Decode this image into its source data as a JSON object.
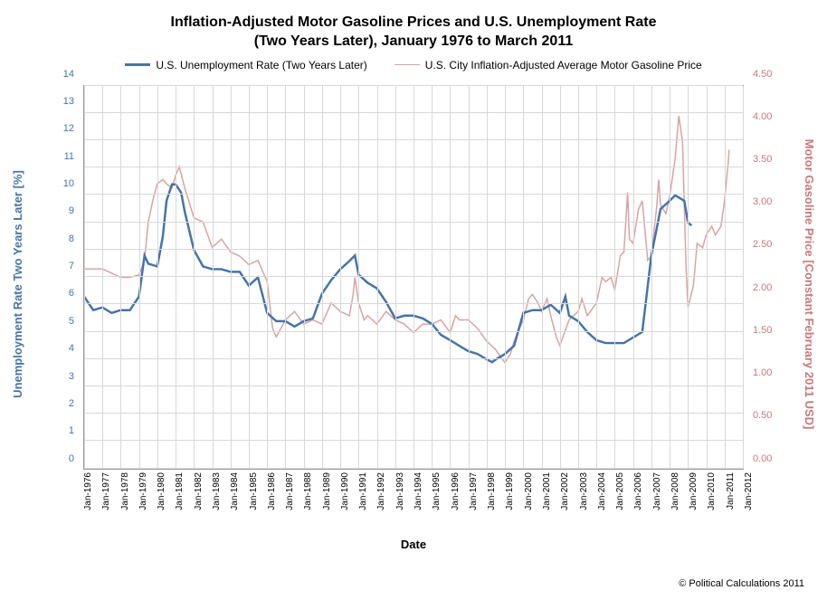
{
  "chart": {
    "type": "line",
    "title_line1": "Inflation-Adjusted Motor Gasoline Prices and U.S. Unemployment Rate",
    "title_line2": "(Two Years Later), January 1976 to March 2011",
    "title_fontsize": 16,
    "legend": {
      "position": "top",
      "items": [
        {
          "label": "U.S. Unemployment Rate (Two Years Later)",
          "color": "#4574a8",
          "width": 2.5
        },
        {
          "label": "U.S. City Inflation-Adjusted Average Motor Gasoline Price",
          "color": "#d9a3a3",
          "width": 1.5
        }
      ]
    },
    "x_axis": {
      "label": "Date",
      "label_fontsize": 13,
      "ticks": [
        "Jan-1976",
        "Jan-1977",
        "Jan-1978",
        "Jan-1979",
        "Jan-1980",
        "Jan-1981",
        "Jan-1982",
        "Jan-1983",
        "Jan-1984",
        "Jan-1985",
        "Jan-1986",
        "Jan-1987",
        "Jan-1988",
        "Jan-1989",
        "Jan-1990",
        "Jan-1991",
        "Jan-1992",
        "Jan-1993",
        "Jan-1994",
        "Jan-1995",
        "Jan-1996",
        "Jan-1997",
        "Jan-1998",
        "Jan-1999",
        "Jan-2000",
        "Jan-2001",
        "Jan-2002",
        "Jan-2003",
        "Jan-2004",
        "Jan-2005",
        "Jan-2006",
        "Jan-2007",
        "Jan-2008",
        "Jan-2009",
        "Jan-2010",
        "Jan-2011",
        "Jan-2012"
      ],
      "tick_fontsize": 10,
      "tick_rotation": -90
    },
    "y_axis_left": {
      "label": "Unemployment Rate Two Years Later [%]",
      "label_fontsize": 13,
      "color": "#4574a8",
      "min": 0,
      "max": 14,
      "tick_step": 1,
      "ticks": [
        0,
        1,
        2,
        3,
        4,
        5,
        6,
        7,
        8,
        9,
        10,
        11,
        12,
        13,
        14
      ]
    },
    "y_axis_right": {
      "label": "Motor Gasoline Price [Constant February 2011 USD]",
      "label_fontsize": 13,
      "color": "#c67a7a",
      "min": 0,
      "max": 4.5,
      "tick_step": 0.5,
      "ticks": [
        "0.00",
        "0.50",
        "1.00",
        "1.50",
        "2.00",
        "2.50",
        "3.00",
        "3.50",
        "4.00",
        "4.50"
      ]
    },
    "grid": {
      "show": true,
      "color": "#d8d8d8"
    },
    "background_color": "#ffffff",
    "series": {
      "unemployment": {
        "color": "#4574a8",
        "width": 2.5,
        "data": [
          [
            1976.0,
            6.3
          ],
          [
            1976.5,
            5.8
          ],
          [
            1977.0,
            5.9
          ],
          [
            1977.5,
            5.7
          ],
          [
            1978.0,
            5.8
          ],
          [
            1978.5,
            5.8
          ],
          [
            1979.0,
            6.3
          ],
          [
            1979.3,
            7.8
          ],
          [
            1979.5,
            7.5
          ],
          [
            1980.0,
            7.4
          ],
          [
            1980.3,
            8.5
          ],
          [
            1980.5,
            9.8
          ],
          [
            1980.8,
            10.4
          ],
          [
            1981.0,
            10.4
          ],
          [
            1981.3,
            10.1
          ],
          [
            1981.5,
            9.4
          ],
          [
            1982.0,
            8.0
          ],
          [
            1982.5,
            7.4
          ],
          [
            1983.0,
            7.3
          ],
          [
            1983.5,
            7.3
          ],
          [
            1984.0,
            7.2
          ],
          [
            1984.5,
            7.2
          ],
          [
            1985.0,
            6.7
          ],
          [
            1985.5,
            7.0
          ],
          [
            1986.0,
            5.7
          ],
          [
            1986.5,
            5.4
          ],
          [
            1987.0,
            5.4
          ],
          [
            1987.5,
            5.2
          ],
          [
            1988.0,
            5.4
          ],
          [
            1988.5,
            5.5
          ],
          [
            1989.0,
            6.4
          ],
          [
            1989.5,
            6.9
          ],
          [
            1990.0,
            7.3
          ],
          [
            1990.5,
            7.6
          ],
          [
            1990.8,
            7.8
          ],
          [
            1991.0,
            7.1
          ],
          [
            1991.5,
            6.8
          ],
          [
            1992.0,
            6.6
          ],
          [
            1992.5,
            6.1
          ],
          [
            1993.0,
            5.5
          ],
          [
            1993.5,
            5.6
          ],
          [
            1994.0,
            5.6
          ],
          [
            1994.5,
            5.5
          ],
          [
            1995.0,
            5.3
          ],
          [
            1995.5,
            4.9
          ],
          [
            1996.0,
            4.7
          ],
          [
            1996.5,
            4.5
          ],
          [
            1997.0,
            4.3
          ],
          [
            1997.5,
            4.2
          ],
          [
            1998.0,
            4.0
          ],
          [
            1998.3,
            3.9
          ],
          [
            1998.5,
            4.0
          ],
          [
            1999.0,
            4.2
          ],
          [
            1999.5,
            4.5
          ],
          [
            2000.0,
            5.7
          ],
          [
            2000.5,
            5.8
          ],
          [
            2001.0,
            5.8
          ],
          [
            2001.5,
            6.0
          ],
          [
            2002.0,
            5.7
          ],
          [
            2002.3,
            6.3
          ],
          [
            2002.5,
            5.6
          ],
          [
            2003.0,
            5.4
          ],
          [
            2003.5,
            5.0
          ],
          [
            2004.0,
            4.7
          ],
          [
            2004.5,
            4.6
          ],
          [
            2005.0,
            4.6
          ],
          [
            2005.5,
            4.6
          ],
          [
            2006.0,
            4.8
          ],
          [
            2006.5,
            5.0
          ],
          [
            2007.0,
            7.8
          ],
          [
            2007.5,
            9.5
          ],
          [
            2008.0,
            9.8
          ],
          [
            2008.3,
            10.0
          ],
          [
            2008.8,
            9.8
          ],
          [
            2009.0,
            9.0
          ],
          [
            2009.2,
            8.9
          ]
        ]
      },
      "gas_price": {
        "color": "#d9a3a3",
        "width": 1.5,
        "data": [
          [
            1976.0,
            2.35
          ],
          [
            1976.5,
            2.35
          ],
          [
            1977.0,
            2.35
          ],
          [
            1977.5,
            2.3
          ],
          [
            1978.0,
            2.25
          ],
          [
            1978.5,
            2.25
          ],
          [
            1979.0,
            2.28
          ],
          [
            1979.3,
            2.45
          ],
          [
            1979.5,
            2.9
          ],
          [
            1979.8,
            3.2
          ],
          [
            1980.0,
            3.35
          ],
          [
            1980.3,
            3.4
          ],
          [
            1980.5,
            3.35
          ],
          [
            1980.8,
            3.3
          ],
          [
            1981.0,
            3.45
          ],
          [
            1981.2,
            3.55
          ],
          [
            1981.5,
            3.3
          ],
          [
            1982.0,
            2.95
          ],
          [
            1982.5,
            2.9
          ],
          [
            1983.0,
            2.6
          ],
          [
            1983.5,
            2.7
          ],
          [
            1984.0,
            2.55
          ],
          [
            1984.5,
            2.5
          ],
          [
            1985.0,
            2.4
          ],
          [
            1985.5,
            2.45
          ],
          [
            1986.0,
            2.2
          ],
          [
            1986.3,
            1.65
          ],
          [
            1986.5,
            1.55
          ],
          [
            1987.0,
            1.75
          ],
          [
            1987.5,
            1.85
          ],
          [
            1988.0,
            1.7
          ],
          [
            1988.5,
            1.75
          ],
          [
            1989.0,
            1.7
          ],
          [
            1989.5,
            1.95
          ],
          [
            1990.0,
            1.85
          ],
          [
            1990.5,
            1.8
          ],
          [
            1990.7,
            2.05
          ],
          [
            1990.8,
            2.25
          ],
          [
            1991.0,
            1.95
          ],
          [
            1991.3,
            1.75
          ],
          [
            1991.5,
            1.8
          ],
          [
            1992.0,
            1.7
          ],
          [
            1992.5,
            1.85
          ],
          [
            1993.0,
            1.75
          ],
          [
            1993.5,
            1.7
          ],
          [
            1994.0,
            1.6
          ],
          [
            1994.5,
            1.7
          ],
          [
            1995.0,
            1.7
          ],
          [
            1995.5,
            1.75
          ],
          [
            1996.0,
            1.6
          ],
          [
            1996.3,
            1.8
          ],
          [
            1996.5,
            1.75
          ],
          [
            1997.0,
            1.75
          ],
          [
            1997.5,
            1.65
          ],
          [
            1998.0,
            1.5
          ],
          [
            1998.5,
            1.4
          ],
          [
            1998.8,
            1.3
          ],
          [
            1999.0,
            1.25
          ],
          [
            1999.3,
            1.35
          ],
          [
            1999.5,
            1.5
          ],
          [
            2000.0,
            1.75
          ],
          [
            2000.3,
            2.0
          ],
          [
            2000.5,
            2.05
          ],
          [
            2000.8,
            1.95
          ],
          [
            2001.0,
            1.85
          ],
          [
            2001.3,
            2.0
          ],
          [
            2001.5,
            1.8
          ],
          [
            2001.8,
            1.55
          ],
          [
            2002.0,
            1.45
          ],
          [
            2002.5,
            1.75
          ],
          [
            2003.0,
            1.85
          ],
          [
            2003.2,
            2.0
          ],
          [
            2003.5,
            1.8
          ],
          [
            2004.0,
            1.95
          ],
          [
            2004.3,
            2.25
          ],
          [
            2004.5,
            2.2
          ],
          [
            2004.8,
            2.25
          ],
          [
            2005.0,
            2.1
          ],
          [
            2005.3,
            2.5
          ],
          [
            2005.5,
            2.55
          ],
          [
            2005.7,
            3.25
          ],
          [
            2005.8,
            2.7
          ],
          [
            2006.0,
            2.65
          ],
          [
            2006.3,
            3.05
          ],
          [
            2006.5,
            3.15
          ],
          [
            2006.8,
            2.45
          ],
          [
            2007.0,
            2.5
          ],
          [
            2007.3,
            3.1
          ],
          [
            2007.4,
            3.4
          ],
          [
            2007.5,
            3.1
          ],
          [
            2007.8,
            3.0
          ],
          [
            2008.0,
            3.2
          ],
          [
            2008.3,
            3.65
          ],
          [
            2008.5,
            4.15
          ],
          [
            2008.7,
            3.85
          ],
          [
            2008.9,
            2.35
          ],
          [
            2009.0,
            1.9
          ],
          [
            2009.3,
            2.15
          ],
          [
            2009.5,
            2.65
          ],
          [
            2009.8,
            2.6
          ],
          [
            2010.0,
            2.75
          ],
          [
            2010.3,
            2.85
          ],
          [
            2010.5,
            2.75
          ],
          [
            2010.8,
            2.85
          ],
          [
            2011.0,
            3.15
          ],
          [
            2011.2,
            3.6
          ],
          [
            2011.25,
            3.75
          ]
        ]
      }
    }
  },
  "copyright": "© Political Calculations 2011"
}
